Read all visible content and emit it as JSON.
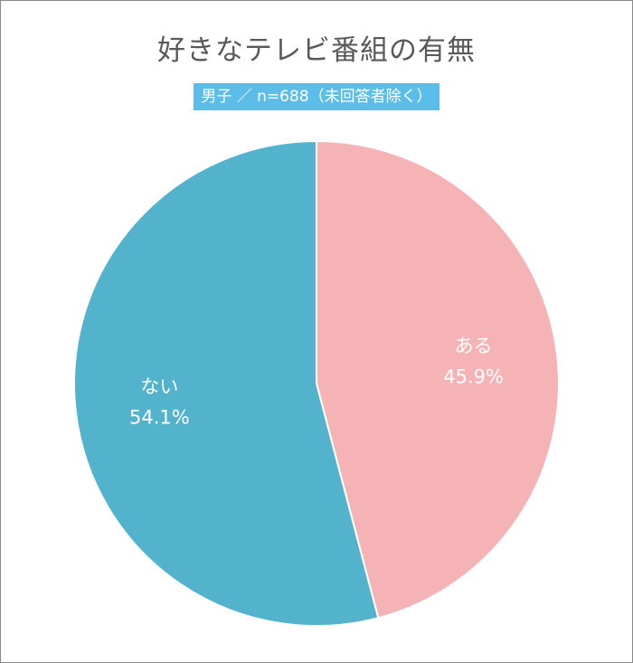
{
  "chart_data": {
    "type": "pie",
    "title": "好きなテレビ番組の有無",
    "subtitle": "男子 ／ n=688（未回答者除く）",
    "slices": [
      {
        "label": "ある",
        "value": 45.9,
        "value_label": "45.9%",
        "color": "#f5b3b5"
      },
      {
        "label": "ない",
        "value": 54.1,
        "value_label": "54.1%",
        "color": "#54b3cc"
      }
    ],
    "start": "12 o'clock",
    "direction": "clockwise"
  }
}
